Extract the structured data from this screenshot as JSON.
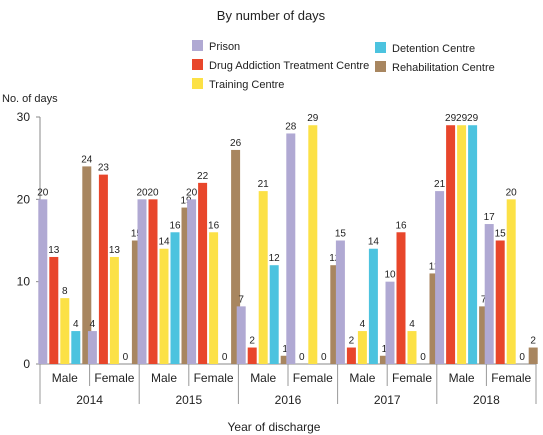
{
  "chart_data": {
    "type": "bar",
    "title": "By number of days",
    "xlabel": "Year of discharge",
    "ylabel": "No. of days",
    "ylim": [
      0,
      30
    ],
    "yticks": [
      0,
      10,
      20,
      30
    ],
    "grid": false,
    "legend_position": "top",
    "years": [
      "2014",
      "2015",
      "2016",
      "2017",
      "2018"
    ],
    "genders": [
      "Male",
      "Female"
    ],
    "series": [
      {
        "name": "Prison",
        "color": "#b0a9d3",
        "values": [
          20,
          4,
          20,
          20,
          7,
          28,
          15,
          10,
          21,
          17
        ]
      },
      {
        "name": "Drug Addiction Treatment Centre",
        "color": "#e8462b",
        "values": [
          13,
          23,
          20,
          22,
          2,
          0,
          2,
          16,
          29,
          15
        ]
      },
      {
        "name": "Training Centre",
        "color": "#fce146",
        "values": [
          8,
          13,
          14,
          16,
          21,
          29,
          4,
          4,
          29,
          20
        ]
      },
      {
        "name": "Detention Centre",
        "color": "#4cc3df",
        "values": [
          4,
          null,
          16,
          null,
          12,
          0,
          14,
          0,
          29,
          null
        ]
      },
      {
        "name": "Rehabilitation Centre",
        "color": "#a88660",
        "values": [
          24,
          15,
          19,
          26,
          1,
          12,
          1,
          11,
          7,
          2
        ]
      }
    ],
    "bar_labels": [
      [
        "20",
        "4",
        "20",
        "20",
        "7",
        "28",
        "15",
        "10",
        "21",
        "17"
      ],
      [
        "13",
        "23",
        "20",
        "22",
        "2",
        "0",
        "2",
        "16",
        "29",
        "15"
      ],
      [
        "8",
        "13",
        "14",
        "16",
        "21",
        "29",
        "4",
        "4",
        "29",
        "20"
      ],
      [
        "4",
        "0",
        "16",
        "0",
        "12",
        "0",
        "14",
        "0",
        "29",
        "0"
      ],
      [
        "24",
        "15",
        "19",
        "26",
        "1",
        "12",
        "1",
        "11",
        "7",
        "2"
      ]
    ]
  }
}
